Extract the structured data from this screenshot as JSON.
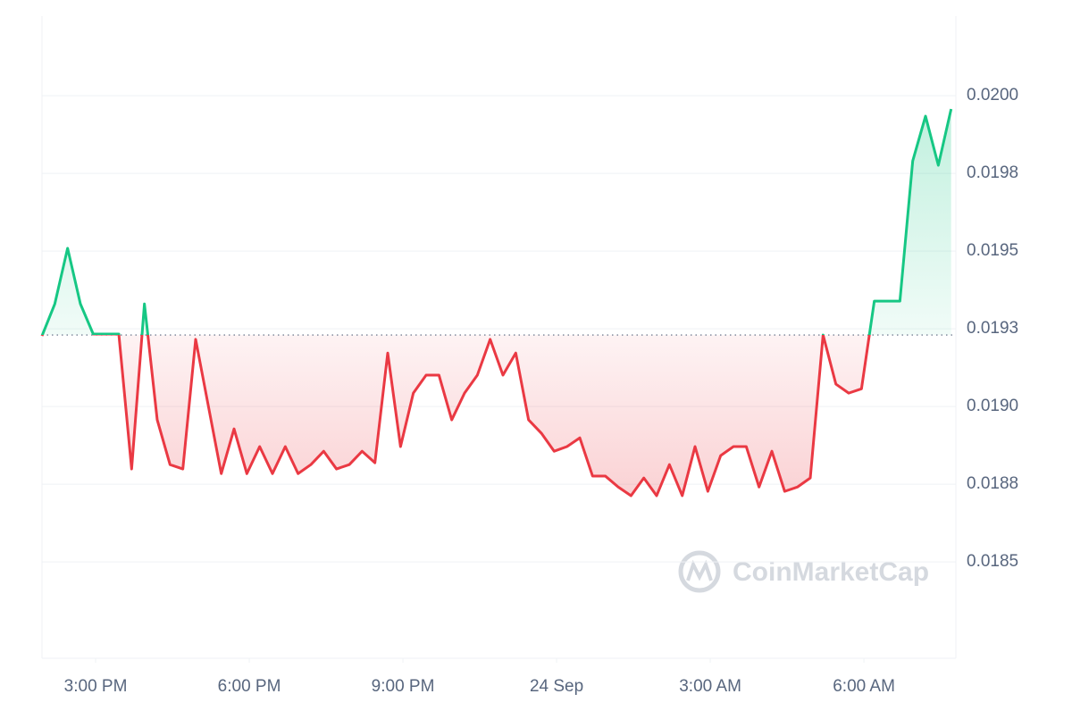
{
  "chart_data": {
    "type": "line",
    "watermark": "CoinMarketCap",
    "values": [
      0.019227,
      0.01933,
      0.019509,
      0.01933,
      0.019233,
      0.019233,
      0.019233,
      0.018799,
      0.01933,
      0.018957,
      0.018813,
      0.018799,
      0.019216,
      0.019,
      0.018784,
      0.018928,
      0.018784,
      0.018871,
      0.018784,
      0.018871,
      0.018784,
      0.018813,
      0.018856,
      0.018799,
      0.018813,
      0.018856,
      0.018819,
      0.019172,
      0.018871,
      0.019043,
      0.019101,
      0.019101,
      0.018957,
      0.019043,
      0.019101,
      0.019216,
      0.019101,
      0.019172,
      0.018957,
      0.018914,
      0.018856,
      0.018871,
      0.018899,
      0.018776,
      0.018776,
      0.018741,
      0.018713,
      0.01877,
      0.018713,
      0.018813,
      0.018713,
      0.018871,
      0.018727,
      0.018842,
      0.018871,
      0.018871,
      0.018741,
      0.018856,
      0.018727,
      0.018741,
      0.01877,
      0.01923,
      0.019072,
      0.019043,
      0.019057,
      0.019339,
      0.019339,
      0.019339,
      0.01979,
      0.019934,
      0.019776,
      0.019957
    ],
    "baseline": 0.01923,
    "color_up": "#16c784",
    "color_down": "#ea3943",
    "xlim": [
      0,
      71.37
    ],
    "xticks": [
      {
        "value": 4.19,
        "label": "3:00 PM"
      },
      {
        "value": 16.19,
        "label": "6:00 PM"
      },
      {
        "value": 28.19,
        "label": "9:00 PM"
      },
      {
        "value": 40.19,
        "label": "24 Sep"
      },
      {
        "value": 52.19,
        "label": "3:00 AM"
      },
      {
        "value": 64.19,
        "label": "6:00 AM"
      }
    ],
    "ylim": [
      0.01819,
      0.020256
    ],
    "yticks": [
      {
        "value": 0.0185,
        "label": "0.0185"
      },
      {
        "value": 0.01875,
        "label": "0.0188"
      },
      {
        "value": 0.019,
        "label": "0.0190"
      },
      {
        "value": 0.01925,
        "label": "0.0193"
      },
      {
        "value": 0.0195,
        "label": "0.0195"
      },
      {
        "value": 0.01975,
        "label": "0.0198"
      },
      {
        "value": 0.02,
        "label": "0.0200"
      }
    ],
    "grid": true
  }
}
